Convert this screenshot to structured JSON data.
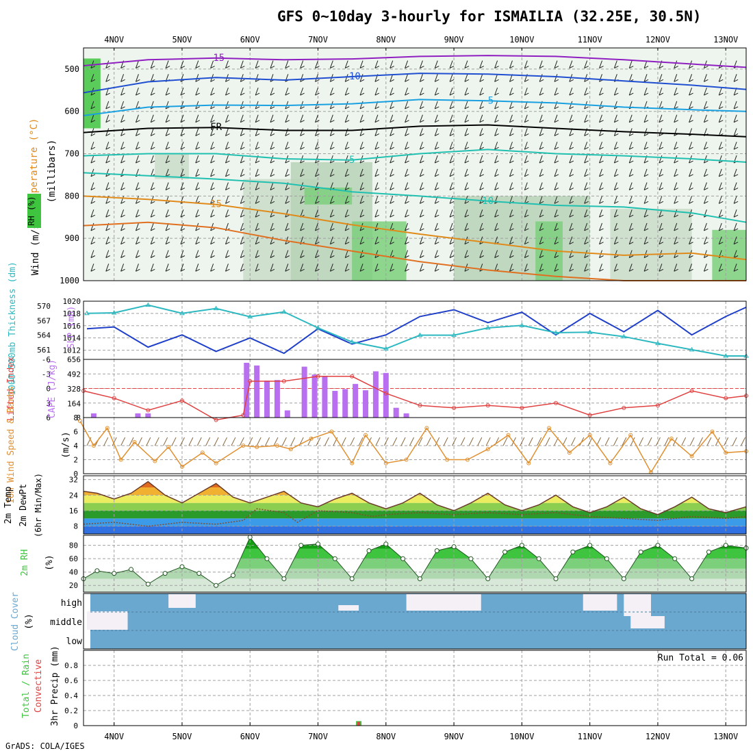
{
  "title": "GFS 0~10day 3-hourly for ISMAILIA (32.25E, 30.5N)",
  "footer": "GrADS: COLA/IGES",
  "colors": {
    "rh_green": "#3fc43f",
    "temp_purple": "#8f1fc0",
    "temp_blue": "#1f4fd0",
    "temp_cyan": "#18a0e0",
    "temp_teal": "#20c0b0",
    "temp_orange": "#e08a1a",
    "temp_red": "#e03030",
    "slp": "#1f3fc8",
    "thickness": "#2cb8c0",
    "lifted": "#e04040",
    "cape": "#b870f0",
    "wind": "#e09030",
    "cloud": "#6aa8d0"
  },
  "chart_data": [
    {
      "panel": "sounding",
      "type": "heatmap",
      "ylabel": "(millibars)",
      "legend_labels": [
        "Wind (m/s)",
        "Temperature (°C)",
        "RH (%)"
      ],
      "y_ticks": [
        "500",
        "600",
        "700",
        "800",
        "900",
        "1000"
      ],
      "ylim": [
        450,
        1000
      ],
      "x_ticks": [
        "4NOV",
        "5NOV",
        "6NOV",
        "7NOV",
        "8NOV",
        "9NOV",
        "10NOV",
        "11NOV",
        "12NOV",
        "13NOV"
      ],
      "isotherm_labels": [
        "-15",
        "-10",
        "-5",
        "FR",
        "5",
        "10",
        "15"
      ],
      "isotherms": [
        {
          "label": "-15",
          "color": "#8f1fc0",
          "x": [
            3.55,
            4.5,
            5.5,
            6.5,
            7.5,
            8.5,
            9.5,
            10.5,
            11.5,
            12.5,
            13.3
          ],
          "y": [
            492,
            478,
            474,
            478,
            476,
            470,
            468,
            470,
            478,
            488,
            496
          ]
        },
        {
          "label": "-10",
          "color": "#1f4fd0",
          "x": [
            3.55,
            4.5,
            5.5,
            6.5,
            7.5,
            8.5,
            9.5,
            10.5,
            11.5,
            12.5,
            13.3
          ],
          "y": [
            556,
            530,
            520,
            526,
            518,
            510,
            512,
            518,
            528,
            538,
            548
          ]
        },
        {
          "label": "-5",
          "color": "#18a0e0",
          "x": [
            3.55,
            4.5,
            5.5,
            6.5,
            7.5,
            8.5,
            9.5,
            10.5,
            11.5,
            12.5,
            13.3
          ],
          "y": [
            610,
            590,
            585,
            586,
            582,
            572,
            575,
            580,
            590,
            596,
            600
          ]
        },
        {
          "label": "FR",
          "color": "#000000",
          "x": [
            3.55,
            4.5,
            5.5,
            6.5,
            7.5,
            8.5,
            9.5,
            10.5,
            11.5,
            12.5,
            13.3
          ],
          "y": [
            650,
            640,
            638,
            645,
            645,
            635,
            632,
            640,
            648,
            654,
            660
          ]
        },
        {
          "label": "5",
          "color": "#20c0b0",
          "x": [
            3.55,
            4.5,
            5.5,
            6.5,
            7.5,
            8.5,
            9.5,
            10.5,
            11.5,
            12.5,
            13.3
          ],
          "y": [
            705,
            700,
            700,
            712,
            715,
            700,
            690,
            700,
            705,
            712,
            720
          ]
        },
        {
          "label": "10",
          "color": "#20c0b0",
          "x": [
            3.55,
            4.5,
            5.5,
            6.5,
            7.5,
            8.5,
            9.5,
            10.5,
            11.5,
            12.5,
            13.3
          ],
          "y": [
            745,
            752,
            760,
            770,
            790,
            800,
            812,
            822,
            826,
            840,
            862
          ]
        },
        {
          "label": "15",
          "color": "#e08a1a",
          "x": [
            3.55,
            4.5,
            5.5,
            6.5,
            7.5,
            8.5,
            9.5,
            10.5,
            11.5,
            12.5,
            13.3
          ],
          "y": [
            800,
            808,
            820,
            842,
            868,
            890,
            910,
            930,
            940,
            935,
            950
          ]
        },
        {
          "label": "",
          "color": "#e07020",
          "x": [
            3.55,
            4.5,
            5.5,
            6.5,
            7.5,
            8.5,
            9.5,
            10.5,
            11.5,
            12.5,
            13.3
          ],
          "y": [
            870,
            862,
            875,
            905,
            930,
            955,
            975,
            990,
            1000,
            1000,
            1000
          ]
        }
      ]
    },
    {
      "panel": "slp_thickness",
      "type": "line",
      "legend_labels": [
        "1000-500mb Thickness (dm)",
        "SLP (mb)"
      ],
      "left_ticks": [
        "570",
        "567",
        "564",
        "561"
      ],
      "right_ticks": [
        "1020",
        "1018",
        "1016",
        "1014",
        "1012"
      ],
      "series": [
        {
          "name": "SLP (mb)",
          "axis": "right",
          "x": [
            3.6,
            4.0,
            4.5,
            5.0,
            5.5,
            6.0,
            6.5,
            7.0,
            7.5,
            8.0,
            8.5,
            9.0,
            9.5,
            10.0,
            10.5,
            11.0,
            11.5,
            12.0,
            12.5,
            13.0,
            13.3
          ],
          "y": [
            1015.5,
            1015.8,
            1012.5,
            1014.5,
            1011.8,
            1014.0,
            1011.5,
            1015.5,
            1013.0,
            1014.5,
            1017.5,
            1018.6,
            1016.5,
            1018.2,
            1014.5,
            1018.0,
            1015.0,
            1018.5,
            1014.5,
            1017.5,
            1019.0
          ]
        },
        {
          "name": "1000-500mb Thickness (dm)",
          "axis": "left",
          "x": [
            3.6,
            4.0,
            4.5,
            5.0,
            5.5,
            6.0,
            6.5,
            7.0,
            7.5,
            8.0,
            8.5,
            9.0,
            9.5,
            10.0,
            10.5,
            11.0,
            11.5,
            12.0,
            12.5,
            13.0,
            13.3
          ],
          "y": [
            568.5,
            568.6,
            570.2,
            568.5,
            569.5,
            567.8,
            568.8,
            565.5,
            562.6,
            561.2,
            564.0,
            564.0,
            565.5,
            566.0,
            564.5,
            564.6,
            563.7,
            562.3,
            561.0,
            559.7,
            559.7
          ]
        }
      ]
    },
    {
      "panel": "stability",
      "type": "bar",
      "legend_labels": [
        "Lifted Index",
        "CAPE (J/kg)"
      ],
      "left_ticks": [
        "-6",
        "-3",
        "0",
        "3",
        "6"
      ],
      "right_ticks": [
        "656",
        "492",
        "328",
        "164",
        "8"
      ],
      "cape": {
        "name": "CAPE (J/kg)",
        "x": [
          3.7,
          4.35,
          4.5,
          5.95,
          6.1,
          6.25,
          6.4,
          6.55,
          6.8,
          6.95,
          7.1,
          7.25,
          7.4,
          7.55,
          7.7,
          7.85,
          8.0,
          8.15,
          8.3
        ],
        "y": [
          55,
          55,
          55,
          618,
          588,
          420,
          426,
          88,
          575,
          487,
          467,
          305,
          325,
          383,
          312,
          523,
          505,
          117,
          55
        ]
      },
      "lifted_index": {
        "name": "Lifted Index",
        "x": [
          3.55,
          4.0,
          4.5,
          5.0,
          5.5,
          5.9,
          6.0,
          6.5,
          7.0,
          7.5,
          8.0,
          8.5,
          9.0,
          9.5,
          10.0,
          10.5,
          11.0,
          11.5,
          12.0,
          12.5,
          13.0,
          13.3
        ],
        "y": [
          0.5,
          2.0,
          4.5,
          2.5,
          6.5,
          5.5,
          -1.5,
          -1.5,
          -2.5,
          -2.5,
          1.0,
          3.5,
          4.0,
          3.5,
          4.0,
          3.0,
          5.5,
          4.0,
          3.5,
          0.5,
          2.0,
          1.5
        ]
      }
    },
    {
      "panel": "wind10m",
      "type": "line",
      "legend_labels": [
        "10m Wind Speed & Barbs",
        "(m/s)"
      ],
      "y_ticks": [
        "8",
        "6",
        "4",
        "2",
        "0"
      ],
      "ylim": [
        0,
        8
      ],
      "series": [
        {
          "name": "10m Wind Speed",
          "x": [
            3.5,
            3.7,
            3.9,
            4.1,
            4.3,
            4.6,
            4.8,
            5.0,
            5.3,
            5.5,
            5.9,
            6.1,
            6.4,
            6.6,
            6.9,
            7.2,
            7.5,
            7.7,
            8.0,
            8.3,
            8.6,
            8.9,
            9.2,
            9.5,
            9.8,
            10.1,
            10.4,
            10.7,
            11.0,
            11.3,
            11.6,
            11.9,
            12.2,
            12.5,
            12.8,
            13.0,
            13.3
          ],
          "y": [
            7.5,
            4.0,
            6.5,
            2.0,
            4.5,
            1.8,
            3.8,
            1.0,
            3.0,
            1.5,
            4.0,
            3.8,
            4.0,
            3.5,
            5.0,
            6.0,
            1.5,
            5.5,
            1.5,
            2.0,
            6.5,
            2.0,
            2.0,
            3.5,
            5.5,
            1.5,
            6.5,
            3.0,
            5.5,
            1.5,
            5.5,
            0.2,
            5.0,
            2.5,
            6.0,
            3.0,
            3.2
          ]
        }
      ]
    },
    {
      "panel": "temperature",
      "type": "area",
      "legend_labels": [
        "2m Temp",
        "2m DewPt",
        "(6hr Min/Max)"
      ],
      "y_ticks": [
        "32",
        "24",
        "16",
        "8"
      ],
      "ylim": [
        4,
        34
      ],
      "series": [
        {
          "name": "2m Temp",
          "x": [
            3.55,
            3.75,
            4.0,
            4.25,
            4.5,
            4.75,
            5.0,
            5.25,
            5.5,
            5.75,
            6.0,
            6.25,
            6.5,
            6.75,
            7.0,
            7.25,
            7.5,
            7.75,
            8.0,
            8.25,
            8.5,
            8.75,
            9.0,
            9.25,
            9.5,
            9.75,
            10.0,
            10.25,
            10.5,
            10.75,
            11.0,
            11.25,
            11.5,
            11.75,
            12.0,
            12.25,
            12.5,
            12.75,
            13.0,
            13.3
          ],
          "y": [
            26,
            25,
            22,
            25,
            31,
            24,
            20,
            25,
            30,
            23,
            20,
            23,
            26,
            20,
            18,
            22,
            25,
            20,
            17,
            20,
            25,
            19,
            16,
            20,
            25,
            19,
            16,
            19,
            24,
            18,
            15,
            18,
            23,
            17,
            14,
            18,
            23,
            17,
            15,
            18
          ]
        },
        {
          "name": "2m DewPt",
          "x": [
            3.55,
            4.0,
            4.5,
            5.0,
            5.5,
            5.9,
            6.1,
            6.5,
            6.7,
            7.0,
            7.5,
            7.8,
            8.0,
            8.5,
            9.0,
            9.5,
            10.0,
            10.5,
            11.0,
            11.5,
            12.0,
            12.5,
            13.0,
            13.3
          ],
          "y": [
            9,
            10,
            8,
            10,
            9,
            11,
            17,
            15,
            10,
            16,
            15,
            13,
            14,
            15,
            14,
            15,
            14,
            15,
            13,
            12,
            11,
            13,
            12,
            13
          ]
        }
      ]
    },
    {
      "panel": "rh2m",
      "type": "area",
      "legend_labels": [
        "2m RH",
        "(%)"
      ],
      "y_ticks": [
        "80",
        "60",
        "40",
        "20"
      ],
      "ylim": [
        10,
        95
      ],
      "series": [
        {
          "name": "2m RH",
          "x": [
            3.55,
            3.75,
            4.0,
            4.25,
            4.5,
            4.75,
            5.0,
            5.25,
            5.5,
            5.75,
            6.0,
            6.25,
            6.5,
            6.75,
            7.0,
            7.25,
            7.5,
            7.75,
            8.0,
            8.25,
            8.5,
            8.75,
            9.0,
            9.25,
            9.5,
            9.75,
            10.0,
            10.25,
            10.5,
            10.75,
            11.0,
            11.25,
            11.5,
            11.75,
            12.0,
            12.25,
            12.5,
            12.75,
            13.0,
            13.3
          ],
          "y": [
            30,
            42,
            38,
            44,
            22,
            38,
            48,
            38,
            20,
            35,
            92,
            60,
            30,
            80,
            82,
            60,
            30,
            72,
            82,
            60,
            30,
            72,
            78,
            60,
            30,
            70,
            80,
            60,
            30,
            70,
            80,
            60,
            30,
            70,
            80,
            60,
            30,
            70,
            80,
            76
          ]
        }
      ]
    },
    {
      "panel": "cloud",
      "type": "heatmap",
      "legend_labels": [
        "Cloud Cover",
        "(%)"
      ],
      "row_labels": [
        "high",
        "middle",
        "low"
      ],
      "note": "nearly full cloud cover in all three layers"
    },
    {
      "panel": "precip",
      "type": "bar",
      "legend_labels": [
        "Total / Rain",
        "Convective",
        "3hr Precip (mm)"
      ],
      "y_ticks": [
        "0.8",
        "0.6",
        "0.4",
        "0.2",
        "0"
      ],
      "ylim": [
        0,
        1.0
      ],
      "run_total_label": "Run Total = 0.06",
      "x": [
        7.6
      ],
      "y": [
        0.06
      ]
    }
  ]
}
